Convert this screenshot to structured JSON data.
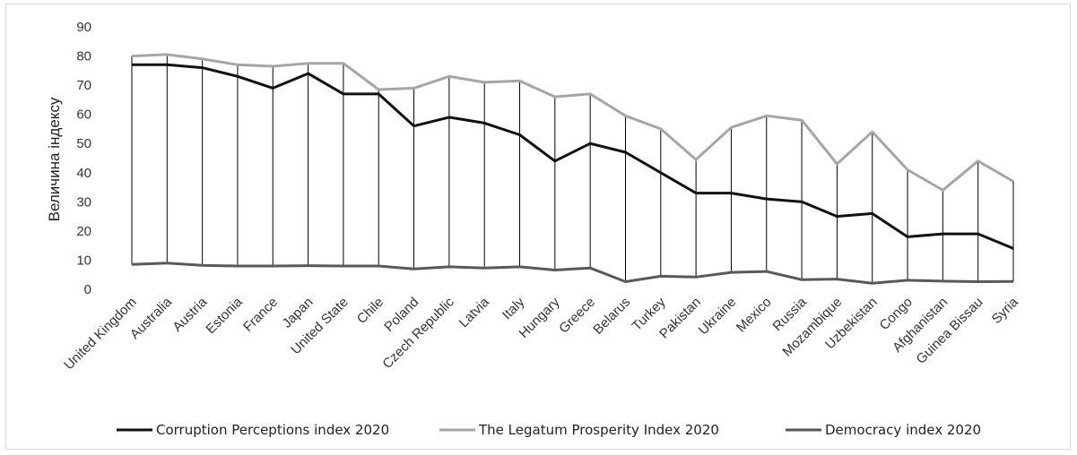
{
  "chart_data": {
    "type": "line",
    "title": "",
    "xlabel": "",
    "ylabel": "Величина індексу",
    "ylim": [
      0,
      90
    ],
    "yticks": [
      0,
      10,
      20,
      30,
      40,
      50,
      60,
      70,
      80,
      90
    ],
    "grid": false,
    "drop_lines": true,
    "legend_position": "bottom",
    "categories": [
      "United Kingdom",
      "Australia",
      "Austria",
      "Estonia",
      "France",
      "Japan",
      "United State",
      "Chile",
      "Poland",
      "Czech Republic",
      "Latvia",
      "Italy",
      "Hungary",
      "Greece",
      "Belarus",
      "Turkey",
      "Pakistan",
      "Ukraine",
      "Mexico",
      "Russia",
      "Mozambique",
      "Uzbekistan",
      "Congo",
      "Afghanistan",
      "Guinea Bissau",
      "Syria"
    ],
    "series": [
      {
        "name": "Corruption Perceptions index 2020",
        "color": "#111111",
        "values": [
          77,
          77,
          76,
          73,
          69,
          74,
          67,
          67,
          56,
          59,
          57,
          53,
          44,
          50,
          47,
          40,
          33,
          33,
          31,
          30,
          25,
          26,
          18,
          19,
          19,
          14
        ]
      },
      {
        "name": "The Legatum Prosperity Index 2020",
        "color": "#a6a6a6",
        "values": [
          80,
          80.5,
          79,
          77,
          76.5,
          77.5,
          77.5,
          68.5,
          69,
          73,
          71,
          71.5,
          66,
          67,
          59.5,
          55,
          44.5,
          55.5,
          59.5,
          58,
          43,
          54,
          41,
          34,
          44,
          37
        ]
      },
      {
        "name": "Democracy index 2020",
        "color": "#595959",
        "values": [
          8.5,
          9,
          8.2,
          8,
          8,
          8.1,
          8,
          8,
          7,
          7.7,
          7.3,
          7.7,
          6.6,
          7.3,
          2.6,
          4.5,
          4.2,
          5.8,
          6.1,
          3.3,
          3.5,
          2.1,
          3.1,
          2.8,
          2.6,
          2.7
        ]
      }
    ]
  }
}
